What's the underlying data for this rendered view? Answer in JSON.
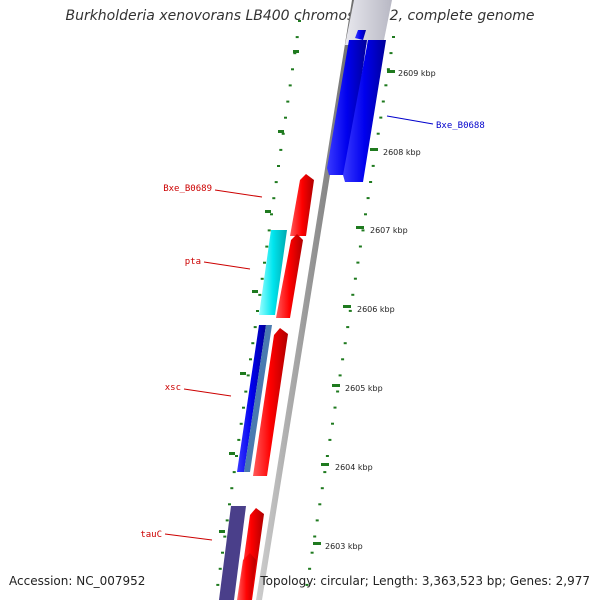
{
  "title": "Burkholderia xenovorans LB400 chromosome 2, complete genome",
  "footer": {
    "accession": "Accession: NC_007952",
    "summary": "Topology: circular; Length: 3,363,523 bp; Genes: 2,977"
  },
  "ticks": [
    "2609 kbp",
    "2608 kbp",
    "2607 kbp",
    "2606 kbp",
    "2605 kbp",
    "2604 kbp",
    "2603 kbp"
  ],
  "gene_labels": [
    {
      "text": "Bxe_B0688",
      "color": "#0000cc"
    },
    {
      "text": "Bxe_B0689",
      "color": "#cc0000"
    },
    {
      "text": "pta",
      "color": "#cc0000"
    },
    {
      "text": "xsc",
      "color": "#cc0000"
    },
    {
      "text": "tauC",
      "color": "#cc0000"
    }
  ],
  "colors": {
    "forward_cds": "#ff0000",
    "reverse_cds": "#0000ee",
    "cyan_feature": "#00e5ee",
    "steelblue_feature": "#4a7ab0",
    "purple_feature": "#4a3f8a",
    "backbone": "#999999",
    "tick": "#1f7a1f"
  }
}
